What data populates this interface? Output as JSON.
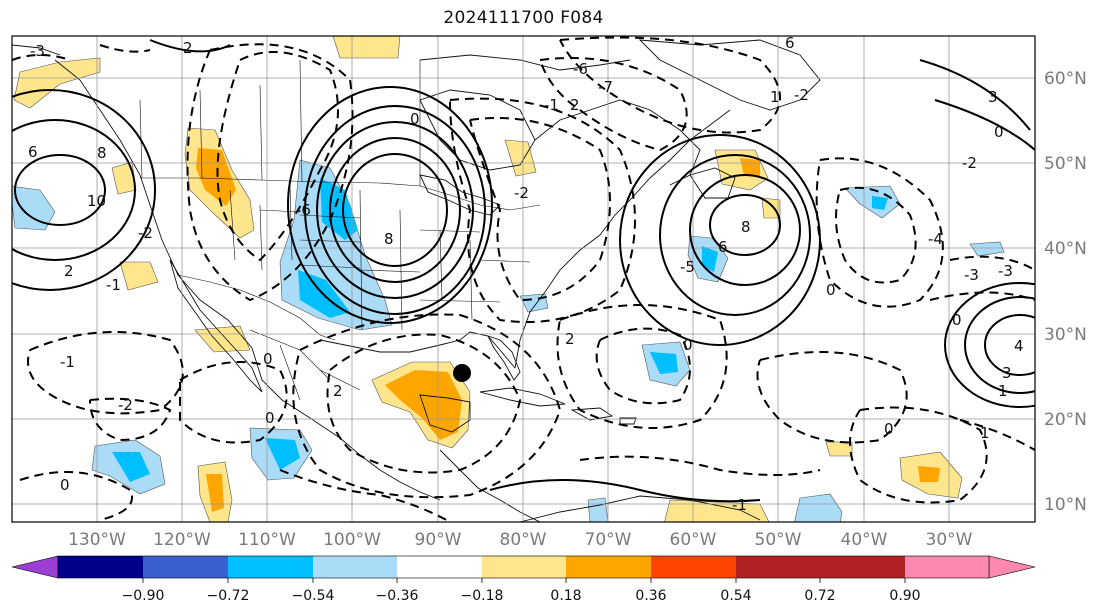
{
  "title": "2024111700 F084",
  "longitude_labels": [
    "130°W",
    "120°W",
    "110°W",
    "100°W",
    "90°W",
    "80°W",
    "70°W",
    "60°W",
    "50°W",
    "40°W",
    "30°W"
  ],
  "latitude_labels": [
    "60°N",
    "50°N",
    "40°N",
    "30°N",
    "20°N",
    "10°N"
  ],
  "colorbar": {
    "tick_labels": [
      "−0.90",
      "−0.72",
      "−0.54",
      "−0.36",
      "−0.18",
      "0.18",
      "0.36",
      "0.54",
      "0.72",
      "0.90"
    ],
    "colors": [
      "#9a3fd3",
      "#00008b",
      "#3b5fcf",
      "#00bfff",
      "#aadcf8",
      "#ffffff",
      "#ffe68c",
      "#ffa500",
      "#ff4500",
      "#b22222",
      "#ff88b0"
    ]
  },
  "contour_labels": [
    "-3",
    "2",
    "-6",
    "6",
    "-7",
    "1",
    "-2",
    "-1",
    "2",
    "0",
    "3",
    "8",
    "10",
    "-2",
    "0",
    "6",
    "-2",
    "-2",
    "2",
    "-1",
    "-1",
    "0",
    "0",
    "2",
    "0",
    "1",
    "0",
    "-4",
    "6",
    "8",
    "-3",
    "4",
    "8",
    "-5",
    "0",
    "-6",
    "2",
    "0",
    "3",
    "-2",
    "-3",
    "0",
    "1",
    "-1"
  ],
  "marker": {
    "label": "storm-center"
  }
}
